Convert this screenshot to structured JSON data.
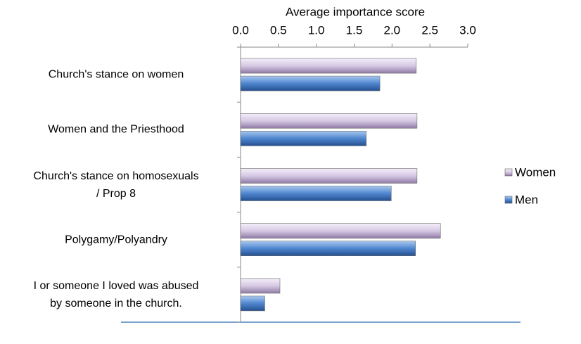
{
  "chart_data": {
    "type": "hbar",
    "x_axis_label": "Average importance score",
    "categories": [
      "Church's stance on women",
      "Women and the Priesthood",
      "Church's stance on homosexuals\n/ Prop 8",
      "Polygamy/Polyandry",
      "I or someone I loved was abused\nby someone in the church."
    ],
    "series": [
      {
        "name": "Women",
        "color": "#d6c8e4",
        "values": [
          2.32,
          2.33,
          2.33,
          2.64,
          0.52
        ]
      },
      {
        "name": "Men",
        "color": "#4f86cf",
        "values": [
          1.84,
          1.66,
          1.99,
          2.31,
          0.32
        ]
      }
    ],
    "xlim": [
      0,
      3
    ],
    "xticks": [
      {
        "value": 0,
        "label": "0.0"
      },
      0.5,
      {
        "value": 1,
        "label": "1.0"
      },
      1.5,
      {
        "value": 2,
        "label": "2.0"
      },
      2.5,
      {
        "value": 3,
        "label": "3.0"
      }
    ],
    "legend": "right"
  }
}
